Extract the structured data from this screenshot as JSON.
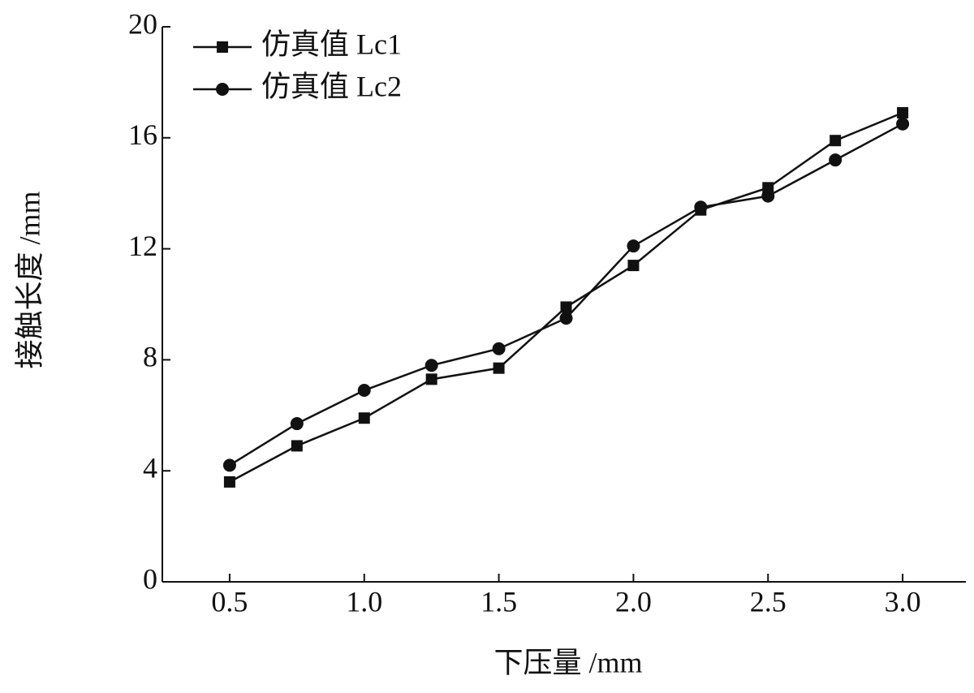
{
  "chart_data": {
    "type": "line",
    "x_label": "下压量 /mm",
    "y_label": "接触长度 /mm",
    "x": [
      0.5,
      0.75,
      1.0,
      1.25,
      1.5,
      1.75,
      2.0,
      2.25,
      2.5,
      2.75,
      3.0
    ],
    "series": [
      {
        "name": "仿真值 Lc1",
        "color": "#111111",
        "marker": "square",
        "values": [
          3.6,
          4.9,
          5.9,
          7.3,
          7.7,
          9.9,
          11.4,
          13.4,
          14.2,
          15.9,
          16.9
        ]
      },
      {
        "name": "仿真值 Lc2",
        "color": "#111111",
        "marker": "circle",
        "values": [
          4.2,
          5.7,
          6.9,
          7.8,
          8.4,
          9.5,
          12.1,
          13.5,
          13.9,
          15.2,
          16.5
        ]
      }
    ],
    "xlim": [
      0.25,
      3.25
    ],
    "xticks": [
      {
        "value": 0.5,
        "label": "0.5"
      },
      {
        "value": 1.0,
        "label": "1.0"
      },
      {
        "value": 1.5,
        "label": "1.5"
      },
      {
        "value": 2.0,
        "label": "2.0"
      },
      {
        "value": 2.5,
        "label": "2.5"
      },
      {
        "value": 3.0,
        "label": "3.0"
      }
    ],
    "ylim": [
      0,
      20
    ],
    "yticks": [
      0,
      4,
      8,
      12,
      16,
      20
    ],
    "legend": "upper left"
  }
}
